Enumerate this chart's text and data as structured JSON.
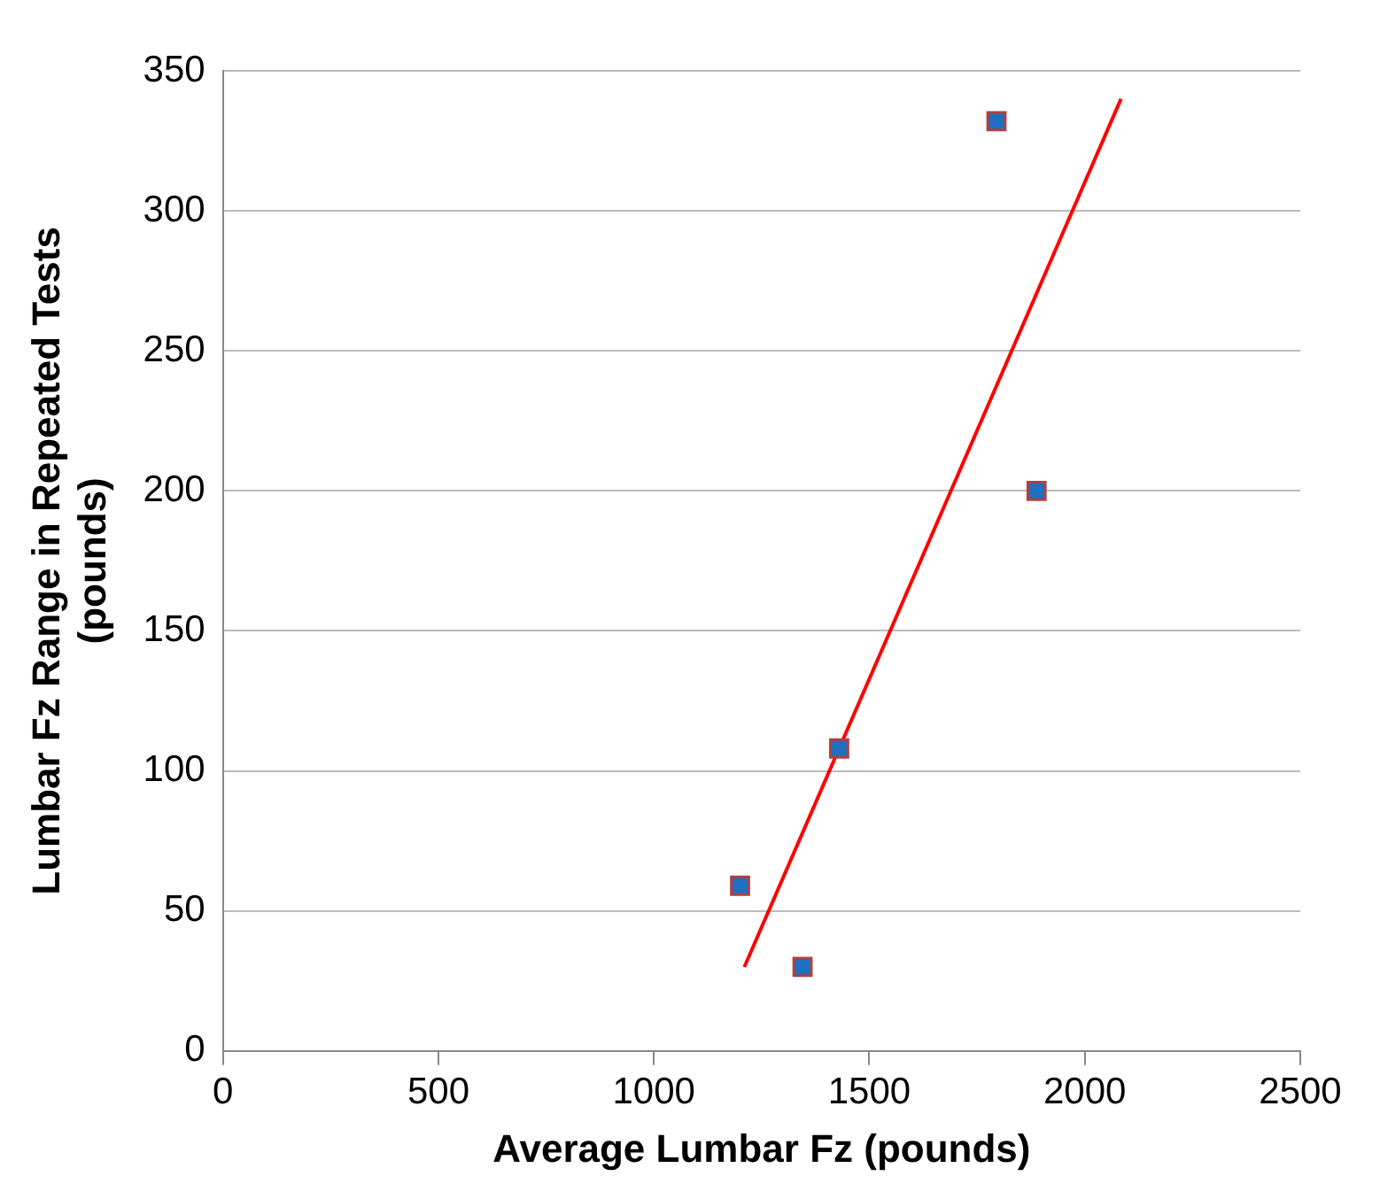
{
  "chart_data": {
    "type": "scatter",
    "xlabel": "Average Lumbar Fz (pounds)",
    "ylabel": "Lumbar Fz Range in Repeated Tests\n(pounds)",
    "xlim": [
      0,
      2500
    ],
    "xticks": [
      0,
      500,
      1000,
      1500,
      2000,
      2500
    ],
    "ylim": [
      0,
      350
    ],
    "yticks": [
      0,
      50,
      100,
      150,
      200,
      250,
      300,
      350
    ],
    "grid": "y",
    "legend": false,
    "series": [
      {
        "type": "scatter",
        "color": "#1f6fc0",
        "marker": "square",
        "x": [
          1200,
          1345,
          1430,
          1795,
          1888
        ],
        "values": [
          59,
          30,
          108,
          332,
          200
        ]
      },
      {
        "type": "line",
        "color": "#ff0000",
        "marker": "none",
        "x": [
          1210,
          2084
        ],
        "values": [
          30,
          340
        ]
      }
    ]
  }
}
